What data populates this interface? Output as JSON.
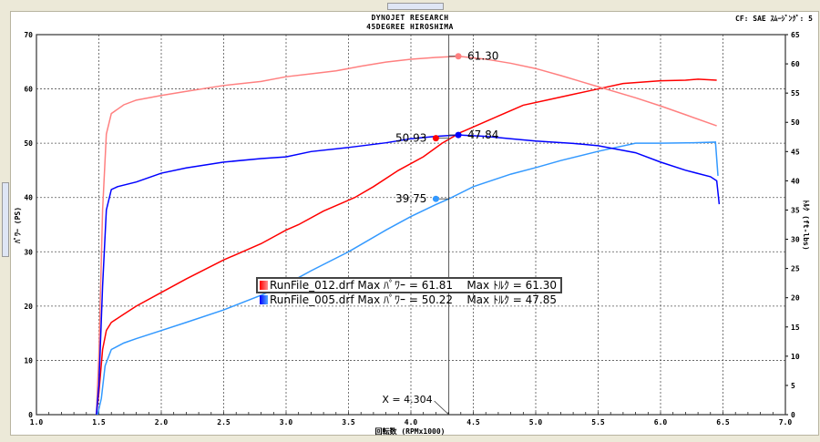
{
  "header": {
    "title": "DYNOJET  RESEARCH",
    "subtitle": "45DEGREE HIROSHIMA",
    "correction": "CF: SAE  ｽﾑｰｼﾞﾝｸﾞ: 5"
  },
  "legend": [
    {
      "file": "RunFile_012.drf",
      "text": "RunFile_012.drf Max ﾊﾟﾜｰ = 61.81    Max ﾄﾙｸ = 61.30",
      "color": "#ff0000"
    },
    {
      "file": "RunFile_005.drf",
      "text": "RunFile_005.drf Max ﾊﾟﾜｰ = 50.22    Max ﾄﾙｸ = 47.85",
      "color": "#0050ff"
    }
  ],
  "chart_data": {
    "type": "line",
    "title": "DYNOJET  RESEARCH",
    "xlabel": "回転数 (RPMx1000)",
    "ylabel": "ﾊﾟﾜｰ (PS)",
    "y2label": "ﾄﾙｸ (ft-lbs)",
    "xlim": [
      1.0,
      7.0
    ],
    "ylim": [
      0,
      70
    ],
    "y2lim": [
      0,
      65
    ],
    "xticks": [
      "1.0",
      "1.5",
      "2.0",
      "2.5",
      "3.0",
      "3.5",
      "4.0",
      "4.5",
      "5.0",
      "5.5",
      "6.0",
      "6.5",
      "7.0"
    ],
    "yticks": [
      "0",
      "10",
      "20",
      "30",
      "40",
      "50",
      "60",
      "70"
    ],
    "y2ticks": [
      "0",
      "5",
      "10",
      "15",
      "20",
      "25",
      "30",
      "35",
      "40",
      "45",
      "50",
      "55",
      "60",
      "65"
    ],
    "grid": true,
    "cursor": {
      "x": 4.304,
      "label": "X = 4.304"
    },
    "series": [
      {
        "name": "RunFile_012.drf",
        "measure": "power",
        "axis": "left",
        "color": "#ff0000",
        "x": [
          1.48,
          1.5,
          1.53,
          1.56,
          1.6,
          1.7,
          1.8,
          2.0,
          2.2,
          2.5,
          2.65,
          2.8,
          3.0,
          3.1,
          3.3,
          3.55,
          3.7,
          3.9,
          4.1,
          4.25,
          4.4,
          4.6,
          4.7,
          4.9,
          5.1,
          5.3,
          5.5,
          5.7,
          6.0,
          6.2,
          6.3,
          6.45
        ],
        "y": [
          0,
          4,
          12,
          15.5,
          17,
          18.5,
          20,
          22.5,
          25,
          28.5,
          30,
          31.5,
          34,
          35,
          37.5,
          40,
          42,
          45,
          47.5,
          50,
          52,
          54,
          55,
          57,
          58,
          59,
          60,
          61,
          61.5,
          61.6,
          61.8,
          61.6
        ]
      },
      {
        "name": "RunFile_012.drf",
        "measure": "torque",
        "axis": "right",
        "color": "#ff8080",
        "x": [
          1.48,
          1.5,
          1.53,
          1.56,
          1.6,
          1.7,
          1.8,
          2.0,
          2.2,
          2.5,
          2.8,
          3.0,
          3.2,
          3.4,
          3.6,
          3.8,
          4.0,
          4.2,
          4.38,
          4.6,
          4.8,
          5.0,
          5.2,
          5.5,
          5.8,
          6.0,
          6.2,
          6.45
        ],
        "y": [
          0,
          10,
          35,
          48,
          51.5,
          53,
          53.8,
          54.6,
          55.3,
          56.3,
          57,
          57.8,
          58.3,
          58.8,
          59.6,
          60.3,
          60.8,
          61.1,
          61.3,
          60.8,
          60.1,
          59.2,
          58,
          56.1,
          54.2,
          52.8,
          51.3,
          49.4
        ]
      },
      {
        "name": "RunFile_005.drf",
        "measure": "power",
        "axis": "left",
        "color": "#3399ff",
        "x": [
          1.49,
          1.52,
          1.55,
          1.6,
          1.7,
          1.8,
          2.0,
          2.2,
          2.5,
          2.8,
          3.0,
          3.2,
          3.5,
          3.8,
          4.0,
          4.2,
          4.304,
          4.5,
          4.8,
          5.0,
          5.2,
          5.5,
          5.8,
          6.0,
          6.3,
          6.44,
          6.46
        ],
        "y": [
          0,
          3,
          9,
          12,
          13.2,
          14,
          15.5,
          17,
          19.3,
          22,
          24,
          26.5,
          30,
          34,
          36.5,
          38.7,
          39.75,
          42,
          44.3,
          45.5,
          46.8,
          48.5,
          50,
          50,
          50.1,
          50.2,
          44
        ]
      },
      {
        "name": "RunFile_005.drf",
        "measure": "torque",
        "axis": "right",
        "color": "#0000ff",
        "x": [
          1.48,
          1.5,
          1.53,
          1.56,
          1.6,
          1.65,
          1.8,
          2.0,
          2.2,
          2.5,
          2.8,
          3.0,
          3.2,
          3.5,
          3.8,
          4.0,
          4.2,
          4.38,
          4.6,
          4.8,
          5.0,
          5.3,
          5.5,
          5.8,
          6.0,
          6.2,
          6.4,
          6.45,
          6.47
        ],
        "y": [
          0,
          5,
          22,
          35,
          38.5,
          39,
          39.8,
          41.3,
          42.2,
          43.2,
          43.8,
          44.1,
          45,
          45.7,
          46.5,
          47.2,
          47.6,
          47.84,
          47.6,
          47.2,
          46.8,
          46.4,
          46,
          44.8,
          43.2,
          41.8,
          40.7,
          40,
          36
        ]
      }
    ],
    "annotations": [
      {
        "label": "61.30",
        "x": 4.38,
        "y": 61.3,
        "axis": "right",
        "color": "#ff8080"
      },
      {
        "label": "50.93",
        "x": 4.2,
        "y": 50.93,
        "axis": "left",
        "color": "#ff0000"
      },
      {
        "label": "47.84",
        "x": 4.38,
        "y": 47.84,
        "axis": "right",
        "color": "#0000ff"
      },
      {
        "label": "39.75",
        "x": 4.2,
        "y": 39.75,
        "axis": "left",
        "color": "#3399ff"
      }
    ]
  }
}
